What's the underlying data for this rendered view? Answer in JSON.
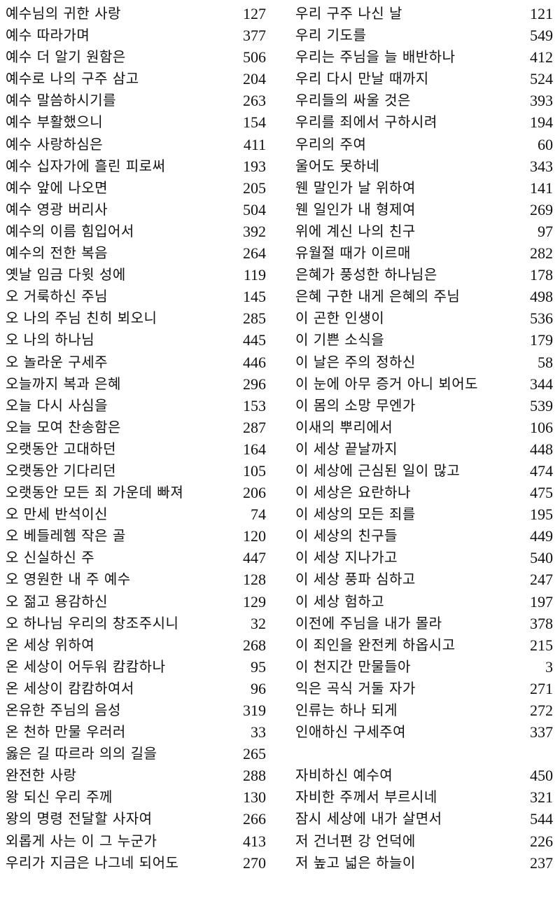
{
  "left_column": [
    {
      "title": "예수님의 귀한 사랑",
      "number": "127"
    },
    {
      "title": "예수 따라가며",
      "number": "377"
    },
    {
      "title": "예수 더 알기 원함은",
      "number": "506"
    },
    {
      "title": "예수로 나의 구주 삼고",
      "number": "204"
    },
    {
      "title": "예수 말씀하시기를",
      "number": "263"
    },
    {
      "title": "예수 부활했으니",
      "number": "154"
    },
    {
      "title": "예수 사랑하심은",
      "number": "411"
    },
    {
      "title": "예수 십자가에 흘린 피로써",
      "number": "193"
    },
    {
      "title": "예수 앞에 나오면",
      "number": "205"
    },
    {
      "title": "예수 영광 버리사",
      "number": "504"
    },
    {
      "title": "예수의 이름 힘입어서",
      "number": "392"
    },
    {
      "title": "예수의 전한 복음",
      "number": "264"
    },
    {
      "title": "옛날 임금 다윗 성에",
      "number": "119"
    },
    {
      "title": "오 거룩하신 주님",
      "number": "145"
    },
    {
      "title": "오 나의 주님 친히 뵈오니",
      "number": "285"
    },
    {
      "title": "오 나의 하나님",
      "number": "445"
    },
    {
      "title": "오 놀라운 구세주",
      "number": "446"
    },
    {
      "title": "오늘까지 복과 은혜",
      "number": "296"
    },
    {
      "title": "오늘 다시 사심을",
      "number": "153"
    },
    {
      "title": "오늘 모여 찬송함은",
      "number": "287"
    },
    {
      "title": "오랫동안 고대하던",
      "number": "164"
    },
    {
      "title": "오랫동안 기다리던",
      "number": "105"
    },
    {
      "title": "오랫동안 모든 죄 가운데 빠져",
      "number": "206"
    },
    {
      "title": "오 만세 반석이신",
      "number": "74"
    },
    {
      "title": "오 베들레헴 작은 골",
      "number": "120"
    },
    {
      "title": "오 신실하신 주",
      "number": "447"
    },
    {
      "title": "오 영원한 내 주 예수",
      "number": "128"
    },
    {
      "title": "오 젊고 용감하신",
      "number": "129"
    },
    {
      "title": "오 하나님 우리의 창조주시니",
      "number": "32"
    },
    {
      "title": "온 세상 위하여",
      "number": "268"
    },
    {
      "title": "온 세상이 어두워 캄캄하나",
      "number": "95"
    },
    {
      "title": "온 세상이 캄캄하여서",
      "number": "96"
    },
    {
      "title": "온유한 주님의 음성",
      "number": "319"
    },
    {
      "title": "온 천하 만물 우러러",
      "number": "33"
    },
    {
      "title": "옳은 길 따르라 의의 길을",
      "number": "265"
    },
    {
      "title": "완전한 사랑",
      "number": "288"
    },
    {
      "title": "왕 되신 우리 주께",
      "number": "130"
    },
    {
      "title": "왕의 명령 전달할 사자여",
      "number": "266"
    },
    {
      "title": "외롭게 사는 이 그 누군가",
      "number": "413"
    },
    {
      "title": "우리가 지금은 나그네 되어도",
      "number": "270"
    }
  ],
  "right_column": [
    {
      "title": "우리 구주 나신 날",
      "number": "121"
    },
    {
      "title": "우리 기도를",
      "number": "549"
    },
    {
      "title": "우리는 주님을 늘 배반하나",
      "number": "412"
    },
    {
      "title": "우리 다시 만날 때까지",
      "number": "524"
    },
    {
      "title": "우리들의 싸울 것은",
      "number": "393"
    },
    {
      "title": "우리를 죄에서 구하시려",
      "number": "194"
    },
    {
      "title": "우리의 주여",
      "number": "60"
    },
    {
      "title": "울어도 못하네",
      "number": "343"
    },
    {
      "title": "웬 말인가 날 위하여",
      "number": "141"
    },
    {
      "title": "웬 일인가 내 형제여",
      "number": "269"
    },
    {
      "title": "위에 계신 나의 친구",
      "number": "97"
    },
    {
      "title": "유월절 때가 이르매",
      "number": "282"
    },
    {
      "title": "은혜가 풍성한 하나님은",
      "number": "178"
    },
    {
      "title": "은혜 구한 내게 은혜의 주님",
      "number": "498"
    },
    {
      "title": "이 곤한 인생이",
      "number": "536"
    },
    {
      "title": "이 기쁜 소식을",
      "number": "179"
    },
    {
      "title": "이 날은 주의 정하신",
      "number": "58"
    },
    {
      "title": "이 눈에 아무 증거 아니 뵈어도",
      "number": "344"
    },
    {
      "title": "이 몸의 소망 무엔가",
      "number": "539"
    },
    {
      "title": "이새의 뿌리에서",
      "number": "106"
    },
    {
      "title": "이 세상 끝날까지",
      "number": "448"
    },
    {
      "title": "이 세상에 근심된 일이 많고",
      "number": "474"
    },
    {
      "title": "이 세상은 요란하나",
      "number": "475"
    },
    {
      "title": "이 세상의 모든 죄를",
      "number": "195"
    },
    {
      "title": "이 세상의 친구들",
      "number": "449"
    },
    {
      "title": "이 세상 지나가고",
      "number": "540"
    },
    {
      "title": "이 세상 풍파 심하고",
      "number": "247"
    },
    {
      "title": "이 세상 험하고",
      "number": "197"
    },
    {
      "title": "이전에 주님을 내가 몰라",
      "number": "378"
    },
    {
      "title": "이 죄인을 완전케 하옵시고",
      "number": "215"
    },
    {
      "title": "이 천지간 만물들아",
      "number": "3"
    },
    {
      "title": "익은 곡식 거둘 자가",
      "number": "271"
    },
    {
      "title": "인류는 하나 되게",
      "number": "272"
    },
    {
      "title": "인애하신 구세주여",
      "number": "337"
    },
    {
      "title": "",
      "number": ""
    },
    {
      "title": "자비하신 예수여",
      "number": "450"
    },
    {
      "title": "자비한 주께서 부르시네",
      "number": "321"
    },
    {
      "title": "잠시 세상에 내가 살면서",
      "number": "544"
    },
    {
      "title": "저 건너편 강 언덕에",
      "number": "226"
    },
    {
      "title": "저 높고 넓은 하늘이",
      "number": "237"
    }
  ]
}
